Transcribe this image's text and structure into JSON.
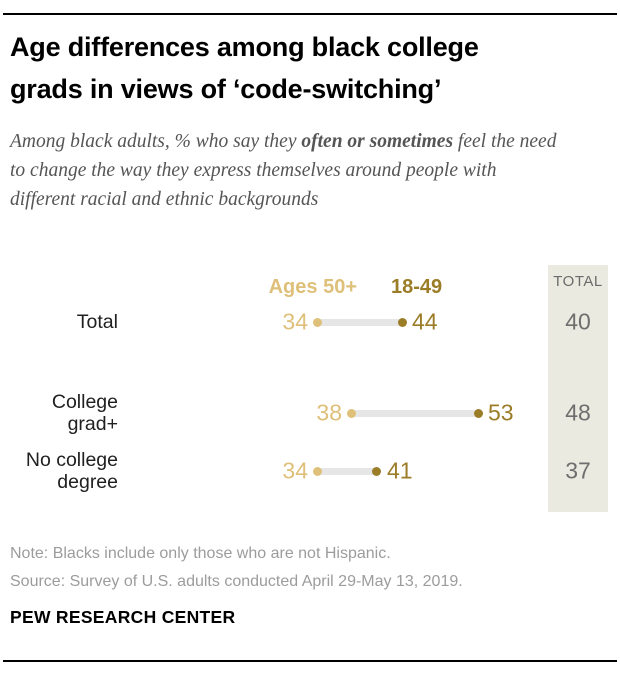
{
  "header": {
    "title_line1": "Age differences among black college",
    "title_line2": "grads in views of ‘code-switching’",
    "subtitle_pre": "Among black adults, % who say they ",
    "subtitle_bold": "often or sometimes",
    "subtitle_post": " feel the need to change the way they express themselves around people with different racial and ethnic backgrounds"
  },
  "chart": {
    "legend_old": "Ages 50+",
    "legend_young": "18-49",
    "total_header": "TOTAL",
    "rows": [
      {
        "label_line1": "Total",
        "label_line2": "",
        "old": "34",
        "young": "44",
        "total": "40"
      },
      {
        "label_line1": "College",
        "label_line2": "grad+",
        "old": "38",
        "young": "53",
        "total": "48"
      },
      {
        "label_line1": "No college",
        "label_line2": "degree",
        "old": "34",
        "young": "41",
        "total": "37"
      }
    ]
  },
  "chart_data": {
    "type": "dumbbell",
    "title": "Age differences among black college grads in views of ‘code-switching’",
    "subtitle": "Among black adults, % who say they often or sometimes feel the need to change the way they express themselves around people with different racial and ethnic backgrounds",
    "categories": [
      "Total",
      "College grad+",
      "No college degree"
    ],
    "series": [
      {
        "name": "Ages 50+",
        "color": "#DFC07A",
        "values": [
          34,
          38,
          34
        ]
      },
      {
        "name": "18-49",
        "color": "#9B7C27",
        "values": [
          44,
          53,
          41
        ]
      }
    ],
    "total_column": {
      "header": "TOTAL",
      "values": [
        40,
        48,
        37
      ]
    },
    "xlim": [
      28,
      60
    ],
    "legend_position": "top",
    "grid": false,
    "connector_color": "#E6E6E6",
    "total_box_color": "#EAEAE1"
  },
  "footer": {
    "note": "Note: Blacks include only those who are not Hispanic.",
    "source": "Source: Survey of U.S. adults conducted April 29-May 13, 2019.",
    "brand": "PEW RESEARCH CENTER"
  },
  "colors": {
    "old_gold": "#DFC07A",
    "young_gold": "#9B7C27",
    "connector_gray": "#E6E6E6",
    "total_box_bg": "#EAEAE1",
    "total_text": "#6E6E6E"
  }
}
